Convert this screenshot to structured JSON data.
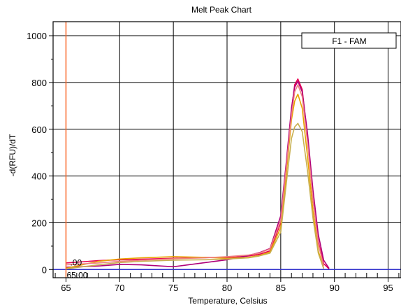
{
  "chart_data": {
    "type": "line",
    "title": "Melt Peak Chart",
    "xlabel": "Temperature, Celsius",
    "ylabel": "-d(RFU)/dT",
    "xlim": [
      63.8,
      96.2
    ],
    "ylim": [
      -35,
      1060
    ],
    "xticks": [
      65,
      70,
      75,
      80,
      85,
      90,
      95
    ],
    "yticks": [
      0,
      200,
      400,
      600,
      800,
      1000
    ],
    "grid": true,
    "legend": {
      "text": "F1 - FAM",
      "position": "top-right"
    },
    "cursor": {
      "x": 65.0,
      "y_label": ".00",
      "x_label": "65.00",
      "color": "#ff6a2a"
    },
    "baseline": {
      "y": 0,
      "color": "#3333cc"
    },
    "series": [
      {
        "color": "#e8004f",
        "x": [
          65,
          68,
          70,
          72,
          75,
          78,
          80,
          82,
          83,
          84,
          85,
          85.5,
          86,
          86.3,
          86.6,
          87,
          87.5,
          88,
          88.5,
          89,
          89.5
        ],
        "y": [
          28,
          38,
          42,
          44,
          48,
          52,
          50,
          58,
          65,
          80,
          200,
          420,
          680,
          790,
          815,
          770,
          560,
          300,
          120,
          25,
          3
        ]
      },
      {
        "color": "#b0007a",
        "x": [
          65,
          68,
          70,
          72,
          75,
          78,
          80,
          82,
          83,
          84,
          85,
          85.5,
          86,
          86.3,
          86.6,
          87,
          87.5,
          88,
          88.5,
          89,
          89.5
        ],
        "y": [
          10,
          15,
          22,
          20,
          12,
          30,
          42,
          60,
          72,
          90,
          230,
          450,
          690,
          780,
          805,
          760,
          580,
          340,
          150,
          40,
          5
        ]
      },
      {
        "color": "#e8a400",
        "x": [
          65,
          68,
          70,
          72,
          75,
          78,
          80,
          82,
          83,
          84,
          85,
          85.5,
          86,
          86.3,
          86.6,
          87,
          87.5,
          88,
          88.5,
          89
        ],
        "y": [
          5,
          35,
          45,
          50,
          55,
          52,
          48,
          52,
          60,
          75,
          180,
          400,
          640,
          720,
          750,
          690,
          480,
          250,
          80,
          5
        ]
      },
      {
        "color": "#c8b050",
        "x": [
          65,
          68,
          70,
          72,
          75,
          78,
          80,
          82,
          83,
          84,
          85,
          85.5,
          86,
          86.3,
          86.6,
          87,
          87.5,
          88,
          88.5,
          89
        ],
        "y": [
          3,
          20,
          30,
          35,
          40,
          42,
          45,
          50,
          58,
          70,
          160,
          360,
          560,
          610,
          625,
          590,
          420,
          220,
          70,
          4
        ]
      },
      {
        "color": "#f08080",
        "x": [
          65,
          68,
          70,
          72,
          75,
          78,
          80,
          82,
          83,
          84,
          85,
          85.5,
          86,
          86.3,
          86.6,
          87,
          87.5,
          88,
          88.5,
          89
        ],
        "y": [
          20,
          28,
          35,
          40,
          46,
          50,
          55,
          62,
          70,
          88,
          210,
          430,
          660,
          760,
          790,
          740,
          540,
          300,
          110,
          15
        ]
      }
    ]
  }
}
